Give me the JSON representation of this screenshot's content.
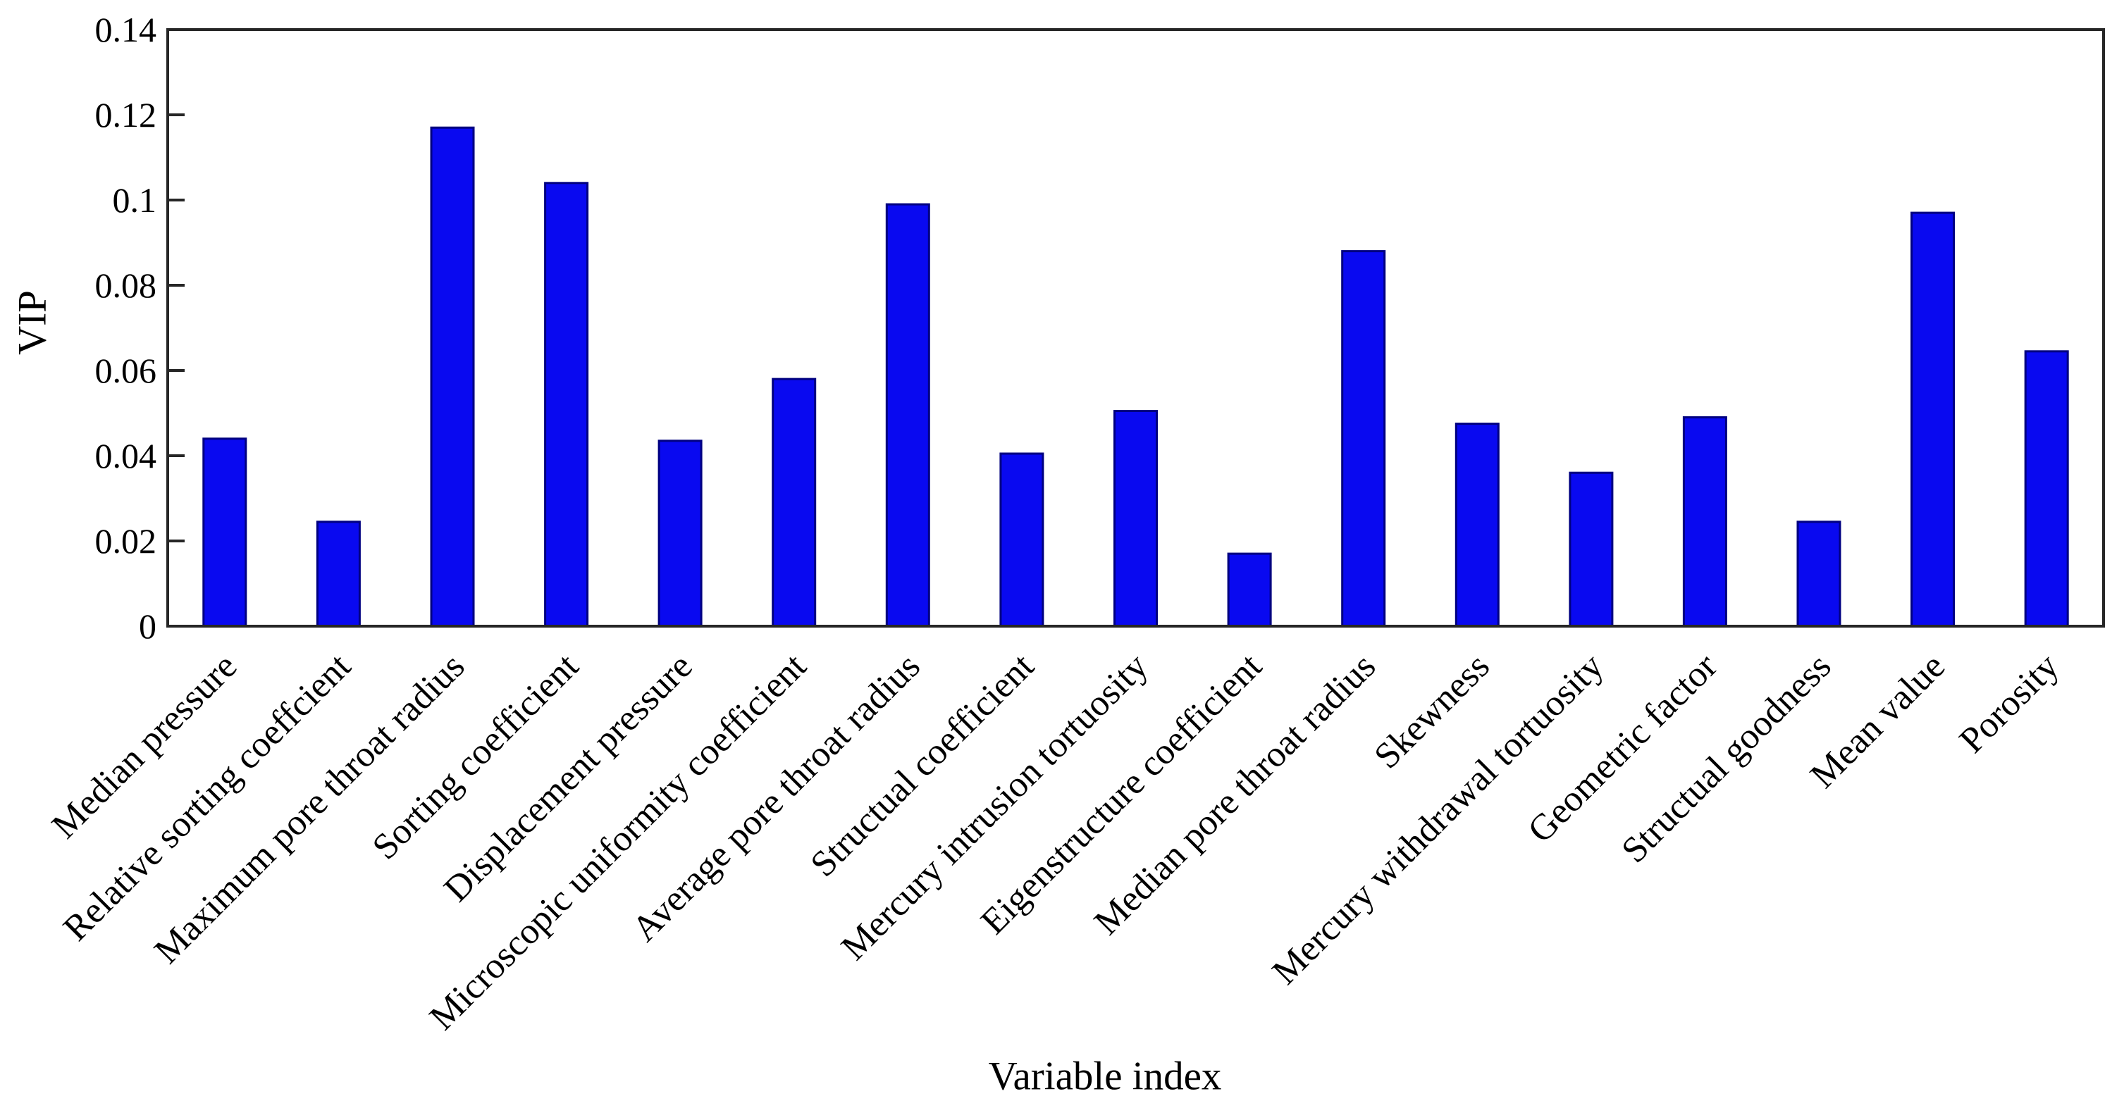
{
  "chart_data": {
    "type": "bar",
    "title": "",
    "xlabel": "Variable index",
    "ylabel": "VIP",
    "categories": [
      "Median pressure",
      "Relative sorting coeffcient",
      "Maximum pore throat radius",
      "Sorting coefficient",
      "Displacement pressure",
      "Microscopic uniformity coefficient",
      "Average pore throat radius",
      "Structual coefficient",
      "Mercury intrusion tortuosity",
      "Eigenstructure coefficient",
      "Median pore throat radius",
      "Skewness",
      "Mercury withdrawal tortuosity",
      "Geometric factor",
      "Structual goodness",
      "Mean value",
      "Porosity"
    ],
    "values": [
      0.044,
      0.0245,
      0.117,
      0.104,
      0.0435,
      0.058,
      0.099,
      0.0405,
      0.0505,
      0.017,
      0.088,
      0.0475,
      0.036,
      0.049,
      0.0245,
      0.097,
      0.0645
    ],
    "ylim": [
      0,
      0.14
    ],
    "ytick_values": [
      0,
      0.02,
      0.04,
      0.06,
      0.08,
      0.1,
      0.12,
      0.14
    ],
    "ytick_labels": [
      "0",
      "0.02",
      "0.04",
      "0.06",
      "0.08",
      "0.1",
      "0.12",
      "0.14"
    ],
    "grid": "off",
    "legend": "none",
    "x_label_rotation_deg": -45,
    "colors": {
      "bar_fill": "#0909f0",
      "bar_edge": "#000080",
      "axis": "#262626",
      "text": "#000000",
      "background": "#ffffff"
    }
  }
}
